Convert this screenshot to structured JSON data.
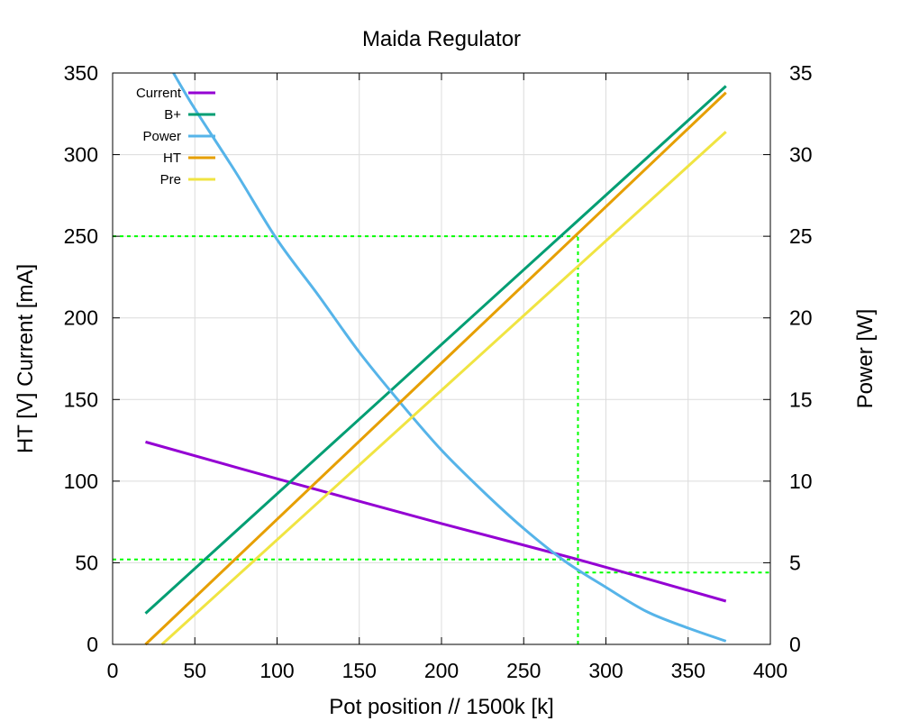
{
  "chart_data": {
    "type": "line",
    "title": "Maida Regulator",
    "xlabel": "Pot position // 1500k [k]",
    "ylabel": "HT [V] Current [mA]",
    "y2label": "Power [W]",
    "xlim": [
      0,
      400
    ],
    "ylim": [
      0,
      350
    ],
    "y2lim": [
      0,
      35
    ],
    "xticks": [
      "0",
      "50",
      "100",
      "150",
      "200",
      "250",
      "300",
      "350",
      "400"
    ],
    "yticks": [
      "0",
      "50",
      "100",
      "150",
      "200",
      "250",
      "300",
      "350"
    ],
    "y2ticks": [
      "0",
      "5",
      "10",
      "15",
      "20",
      "25",
      "30",
      "35"
    ],
    "grid": true,
    "legend_position": "top-left",
    "series": [
      {
        "name": "Current",
        "color": "#9400d3",
        "axis": "y",
        "points": [
          [
            20,
            124
          ],
          [
            100,
            101.5
          ],
          [
            200,
            74
          ],
          [
            283,
            52
          ],
          [
            373,
            26.5
          ]
        ]
      },
      {
        "name": "B+",
        "color": "#009e73",
        "axis": "y",
        "points": [
          [
            20,
            19
          ],
          [
            373,
            342
          ]
        ]
      },
      {
        "name": "Power",
        "color": "#56b4e9",
        "axis": "y2",
        "points": [
          [
            37,
            35
          ],
          [
            50,
            32.8
          ],
          [
            75,
            28.9
          ],
          [
            100,
            24.8
          ],
          [
            125,
            21.4
          ],
          [
            150,
            17.9
          ],
          [
            175,
            14.8
          ],
          [
            200,
            11.9
          ],
          [
            225,
            9.4
          ],
          [
            250,
            7.1
          ],
          [
            275,
            5.1
          ],
          [
            300,
            3.5
          ],
          [
            325,
            2.0
          ],
          [
            350,
            1.0
          ],
          [
            373,
            0.2
          ]
        ]
      },
      {
        "name": "HT",
        "color": "#e69f00",
        "axis": "y",
        "points": [
          [
            20,
            0
          ],
          [
            373,
            338
          ]
        ]
      },
      {
        "name": "Pre",
        "color": "#f0e442",
        "axis": "y",
        "points": [
          [
            30,
            0
          ],
          [
            373,
            314
          ]
        ]
      }
    ],
    "guides": {
      "color": "#00ff00",
      "hlines_y": [
        {
          "y": 250,
          "x_from": 0,
          "x_to": 283
        },
        {
          "y": 52,
          "x_from": 0,
          "x_to": 283
        }
      ],
      "hlines_y2": [
        {
          "y": 4.4,
          "x_from": 283,
          "x_to": 400
        }
      ],
      "vlines": [
        {
          "x": 283,
          "y_from": 0,
          "y_to": 250
        }
      ]
    }
  }
}
